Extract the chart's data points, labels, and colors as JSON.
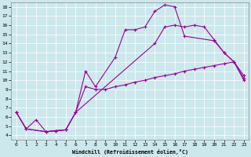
{
  "xlabel": "Windchill (Refroidissement éolien,°C)",
  "bg_color": "#cce8ec",
  "line_color": "#990099",
  "xlim": [
    -0.5,
    23.5
  ],
  "ylim": [
    3.5,
    18.5
  ],
  "xticks": [
    0,
    1,
    2,
    3,
    4,
    5,
    6,
    7,
    8,
    9,
    10,
    11,
    12,
    13,
    14,
    15,
    16,
    17,
    18,
    19,
    20,
    21,
    22,
    23
  ],
  "yticks": [
    4,
    5,
    6,
    7,
    8,
    9,
    10,
    11,
    12,
    13,
    14,
    15,
    16,
    17,
    18
  ],
  "lineA_x": [
    0,
    1,
    2,
    3,
    4,
    5,
    6,
    7,
    8,
    9,
    10,
    11,
    12,
    13,
    14,
    15,
    16,
    17,
    18,
    19,
    20,
    21,
    22,
    23
  ],
  "lineA_y": [
    6.5,
    4.7,
    5.7,
    4.4,
    4.5,
    4.6,
    6.5,
    9.3,
    9.0,
    9.0,
    9.3,
    9.5,
    9.8,
    10.0,
    10.3,
    10.5,
    10.7,
    11.0,
    11.2,
    11.4,
    11.6,
    11.8,
    12.0,
    10.0
  ],
  "lineB_x": [
    0,
    1,
    3,
    4,
    5,
    6,
    7,
    8,
    10,
    11,
    12,
    13,
    14,
    15,
    16,
    17,
    20,
    21,
    22,
    23
  ],
  "lineB_y": [
    6.5,
    4.7,
    4.4,
    4.5,
    4.6,
    6.5,
    11.0,
    9.3,
    12.5,
    15.5,
    15.5,
    15.8,
    17.5,
    18.2,
    18.0,
    14.8,
    14.3,
    13.0,
    12.0,
    10.2
  ],
  "lineC_x": [
    0,
    1,
    3,
    4,
    5,
    6,
    14,
    15,
    16,
    17,
    18,
    19,
    20,
    21,
    22,
    23
  ],
  "lineC_y": [
    6.5,
    4.7,
    4.4,
    4.5,
    4.6,
    6.5,
    14.0,
    15.8,
    16.0,
    15.8,
    16.0,
    15.8,
    14.4,
    13.0,
    12.0,
    10.5
  ]
}
